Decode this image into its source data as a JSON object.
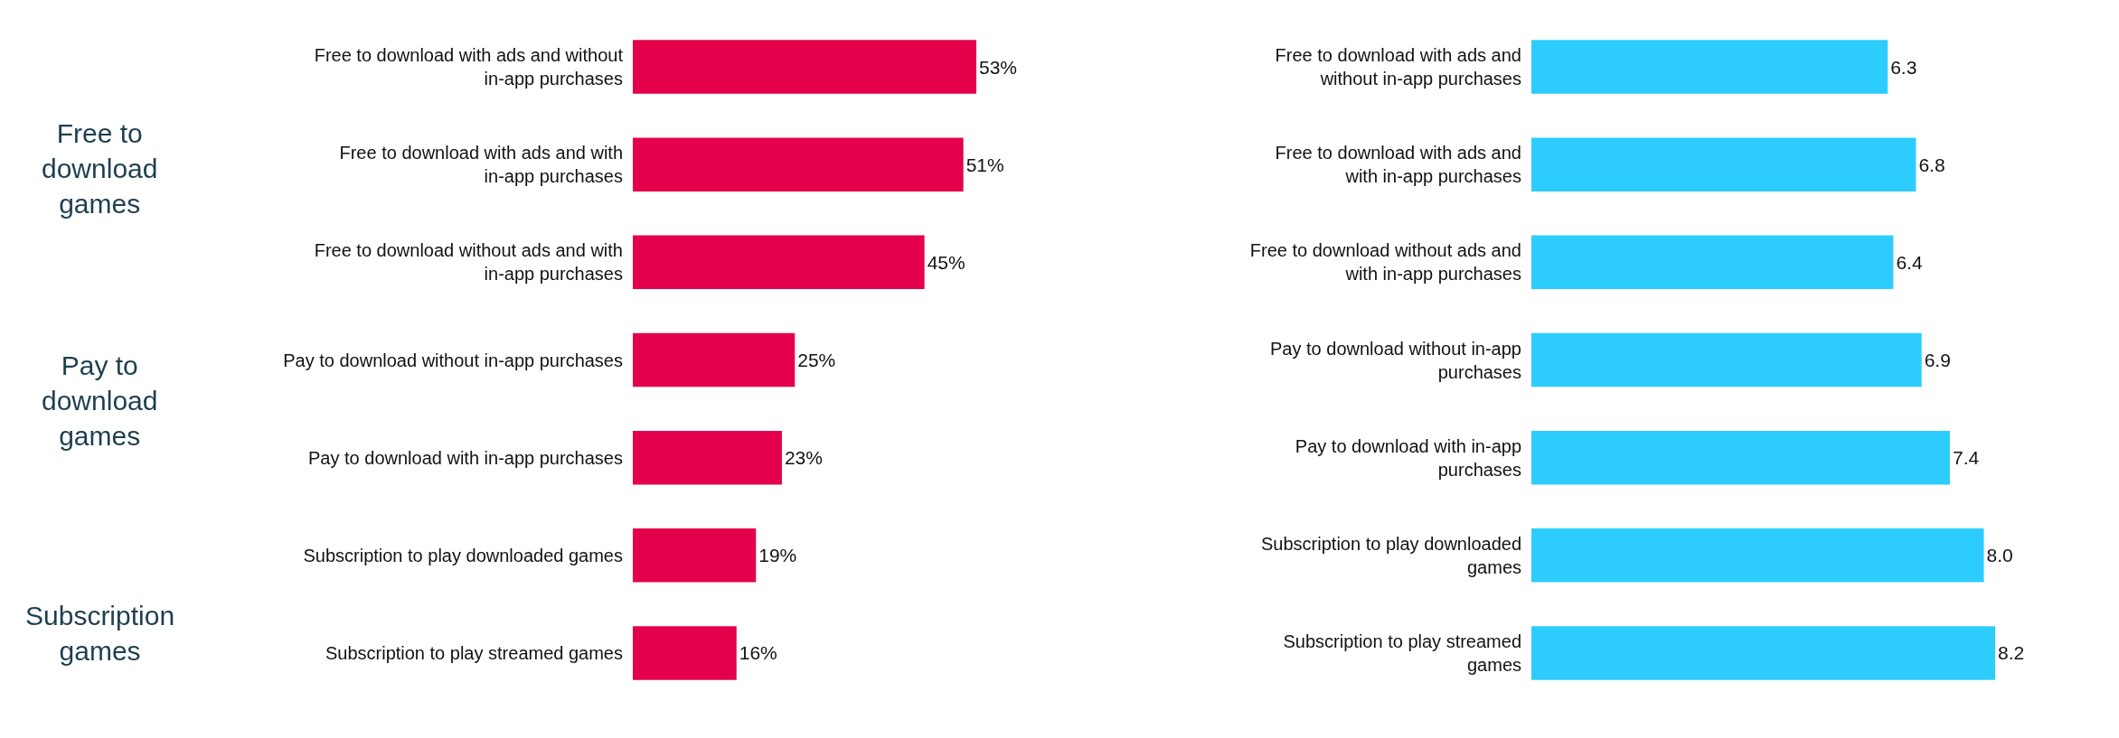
{
  "chart_data": [
    {
      "type": "bar",
      "orientation": "horizontal",
      "categories": [
        "Free to download with ads and without in-app purchases",
        "Free to download with ads and with in-app purchases",
        "Free to download without ads and with in-app purchases",
        "Pay to download without in-app purchases",
        "Pay to download with in-app purchases",
        "Subscription to play downloaded games",
        "Subscription to play streamed games"
      ],
      "values": [
        53,
        51,
        45,
        25,
        23,
        19,
        16
      ],
      "color": "#e4004b",
      "value_labels": [
        "53%",
        "51%",
        "45%",
        "25%",
        "23%",
        "19%",
        "16%"
      ],
      "annotations": [
        "Free to download games",
        "Pay to download games",
        "Subscription games"
      ]
    },
    {
      "type": "bar",
      "orientation": "horizontal",
      "categories": [
        "Free to download with ads and without in-app purchases",
        "Free to download with ads and with in-app purchases",
        "Free to download without ads and with in-app purchases",
        "Pay to download without in-app purchases",
        "Pay to download with in-app purchases",
        "Subscription to play downloaded games",
        "Subscription to play streamed games"
      ],
      "values": [
        6.3,
        6.8,
        6.4,
        6.9,
        7.4,
        8.0,
        8.2
      ],
      "color": "#2ccdfc",
      "value_labels": [
        "6.3",
        "6.8",
        "6.4",
        "6.9",
        "7.4",
        "8.0",
        "8.2"
      ]
    }
  ]
}
